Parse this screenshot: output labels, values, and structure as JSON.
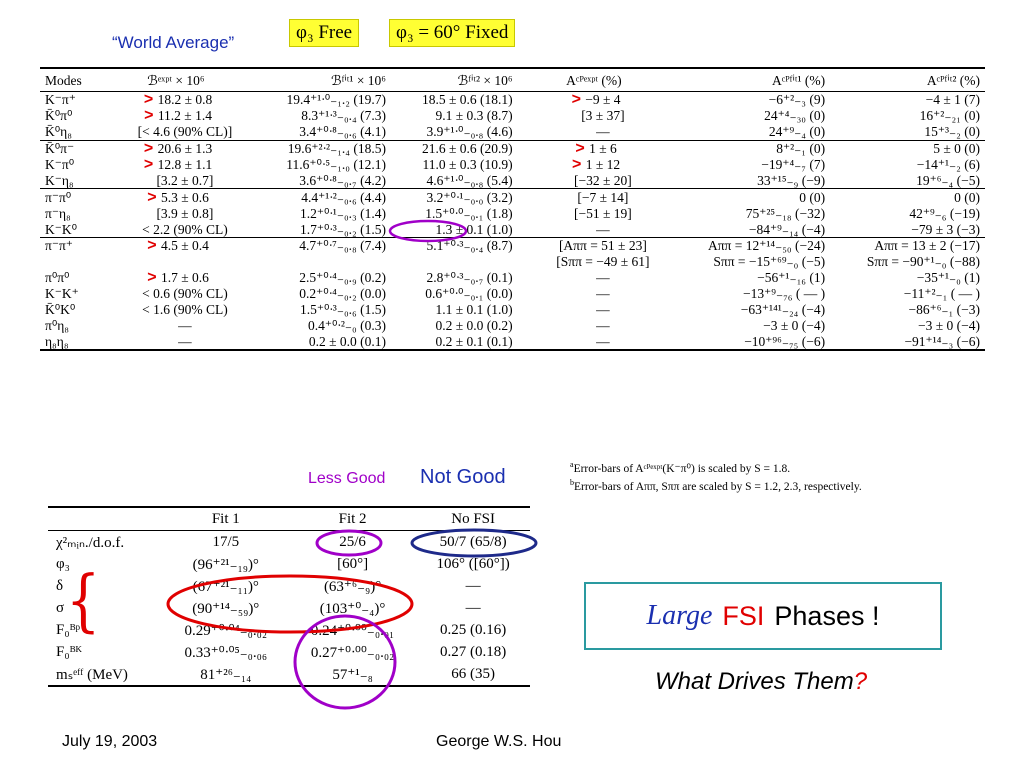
{
  "header": {
    "world_average": "“World Average”",
    "phi3_free": "φ₃ Free",
    "phi3_fixed": "φ₃ = 60° Fixed"
  },
  "table1": {
    "headers": [
      "Modes",
      "ℬᵉˣᵖᵗ × 10⁶",
      "ℬᶠⁱᵗ¹ × 10⁶",
      "ℬᶠⁱᵗ² × 10⁶",
      "Aᶜᴾᵉˣᵖᵗ (%)",
      "Aᶜᴾᶠⁱᵗ¹ (%)",
      "Aᶜᴾᶠⁱᵗ² (%)"
    ],
    "rows": [
      {
        "mode": "K⁻π⁺",
        "m1": ">",
        "expt": "18.2 ± 0.8",
        "fit1": "19.4⁺¹ᐧ⁰₋₁.₂ (19.7)",
        "fit2": "18.5 ± 0.6 (18.1)",
        "m2": ">",
        "aexp": "−9 ± 4",
        "af1": "−6⁺²₋₃ (9)",
        "af2": "−4 ± 1 (7)",
        "grp": true
      },
      {
        "mode": "K̄⁰π⁰",
        "m1": ">",
        "expt": "11.2 ± 1.4",
        "fit1": "8.3⁺¹ᐧ³₋₀.₄ (7.3)",
        "fit2": "9.1 ± 0.3 (8.7)",
        "m2": "",
        "aexp": "[3 ± 37]",
        "af1": "24⁺⁴₋₃₀ (0)",
        "af2": "16⁺²₋₂₁ (0)",
        "grp": false
      },
      {
        "mode": "K̄⁰η₈",
        "m1": "",
        "expt": "[< 4.6 (90% CL)]",
        "fit1": "3.4⁺⁰ᐧ⁸₋₀.₆ (4.1)",
        "fit2": "3.9⁺¹ᐧ⁰₋₀.₈ (4.6)",
        "m2": "",
        "aexp": "—",
        "af1": "24⁺⁹₋₄ (0)",
        "af2": "15⁺³₋₂ (0)",
        "grp": false
      },
      {
        "mode": "K̄⁰π⁻",
        "m1": ">",
        "expt": "20.6 ± 1.3",
        "fit1": "19.6⁺²ᐧ²₋₁.₄ (18.5)",
        "fit2": "21.6 ± 0.6 (20.9)",
        "m2": ">",
        "aexp": "1 ± 6",
        "af1": "8⁺²₋₁ (0)",
        "af2": "5 ± 0 (0)",
        "grp": true
      },
      {
        "mode": "K⁻π⁰",
        "m1": ">",
        "expt": "12.8 ± 1.1",
        "fit1": "11.6⁺⁰ᐧ⁵₋₁.₀ (12.1)",
        "fit2": "11.0 ± 0.3 (10.9)",
        "m2": ">",
        "aexp": "1 ± 12",
        "af1": "−19⁺⁴₋₇ (7)",
        "af2": "−14⁺¹₋₂ (6)",
        "grp": false
      },
      {
        "mode": "K⁻η₈",
        "m1": "",
        "expt": "[3.2 ± 0.7]",
        "fit1": "3.6⁺⁰ᐧ⁸₋₀.₇ (4.2)",
        "fit2": "4.6⁺¹ᐧ⁰₋₀.₈ (5.4)",
        "m2": "",
        "aexp": "[−32 ± 20]",
        "af1": "33⁺¹⁵₋₉ (−9)",
        "af2": "19⁺⁶₋₄ (−5)",
        "grp": false
      },
      {
        "mode": "π⁻π⁰",
        "m1": ">",
        "expt": "5.3 ± 0.6",
        "fit1": "4.4⁺¹ᐧ²₋₀.₆ (4.4)",
        "fit2": "3.2⁺⁰ᐧ¹₋₀.₀ (3.2)",
        "m2": "",
        "aexp": "[−7 ± 14]",
        "af1": "0 (0)",
        "af2": "0 (0)",
        "grp": true
      },
      {
        "mode": "π⁻η₈",
        "m1": "",
        "expt": "[3.9 ± 0.8]",
        "fit1": "1.2⁺⁰ᐧ¹₋₀.₃ (1.4)",
        "fit2": "1.5⁺⁰ᐧ⁰₋₀.₁ (1.8)",
        "m2": "",
        "aexp": "[−51 ± 19]",
        "af1": "75⁺²⁵₋₁₈ (−32)",
        "af2": "42⁺⁹₋₆ (−19)",
        "grp": false
      },
      {
        "mode": "K⁻K⁰",
        "m1": "",
        "expt": "< 2.2 (90% CL)",
        "fit1": "1.7⁺⁰ᐧ³₋₀.₂ (1.5)",
        "fit2": "1.3 ± 0.1 (1.0)",
        "m2": "",
        "aexp": "—",
        "af1": "−84⁺⁹₋₁₄ (−4)",
        "af2": "−79 ± 3 (−3)",
        "grp": false
      },
      {
        "mode": "π⁻π⁺",
        "m1": ">",
        "expt": "4.5 ± 0.4",
        "fit1": "4.7⁺⁰ᐧ⁷₋₀.₈ (7.4)",
        "fit2": "5.1⁺⁰ᐧ³₋₀.₄ (8.7)",
        "m2": "",
        "aexp": "[Aππ = 51 ± 23]",
        "af1": "Aππ = 12⁺¹⁴₋₅₀ (−24)",
        "af2": "Aππ = 13 ± 2 (−17)",
        "grp": true
      },
      {
        "mode": "",
        "m1": "",
        "expt": "",
        "fit1": "",
        "fit2": "",
        "m2": "",
        "aexp": "[Sππ = −49 ± 61]",
        "af1": "Sππ = −15⁺⁶⁹₋₀ (−5)",
        "af2": "Sππ = −90⁺¹₋₀ (−88)",
        "grp": false
      },
      {
        "mode": "π⁰π⁰",
        "m1": ">",
        "expt": "1.7 ± 0.6",
        "fit1": "2.5⁺⁰ᐧ⁴₋₀.₉ (0.2)",
        "fit2": "2.8⁺⁰ᐧ³₋₀.₇ (0.1)",
        "m2": "",
        "aexp": "—",
        "af1": "−56⁺¹₋₁₆ (1)",
        "af2": "−35⁺¹₋₀ (1)",
        "grp": false
      },
      {
        "mode": "K⁻K⁺",
        "m1": "",
        "expt": "< 0.6 (90% CL)",
        "fit1": "0.2⁺⁰ᐧ⁴₋₀.₂ (0.0)",
        "fit2": "0.6⁺⁰ᐧ⁰₋₀.₁ (0.0)",
        "m2": "",
        "aexp": "—",
        "af1": "−13⁺⁹₋₇₆ ( — )",
        "af2": "−11⁺²₋₁ ( — )",
        "grp": false
      },
      {
        "mode": "K̄⁰K⁰",
        "m1": "",
        "expt": "< 1.6 (90% CL)",
        "fit1": "1.5⁺⁰ᐧ³₋₀.₆ (1.5)",
        "fit2": "1.1 ± 0.1 (1.0)",
        "m2": "",
        "aexp": "—",
        "af1": "−63⁺¹⁴¹₋₂₄ (−4)",
        "af2": "−86⁺⁶₋₁ (−3)",
        "grp": false
      },
      {
        "mode": "π⁰η₈",
        "m1": "",
        "expt": "—",
        "fit1": "0.4⁺⁰ᐧ²₋₀ (0.3)",
        "fit2": "0.2 ± 0.0 (0.2)",
        "m2": "",
        "aexp": "—",
        "af1": "−3 ± 0 (−4)",
        "af2": "−3 ± 0 (−4)",
        "grp": false
      },
      {
        "mode": "η₈η₈",
        "m1": "",
        "expt": "—",
        "fit1": "0.2 ± 0.0 (0.1)",
        "fit2": "0.2 ± 0.1 (0.1)",
        "m2": "",
        "aexp": "—",
        "af1": "−10⁺⁹⁶₋₇₅ (−6)",
        "af2": "−91⁺¹⁴₋₃ (−6)",
        "grp": false
      }
    ]
  },
  "footnotes": {
    "a_mark": "a",
    "a_text": "Error-bars of Aᶜᴾᵉˣᵖᵗ(K⁻π⁰) is scaled by S = 1.8.",
    "b_mark": "b",
    "b_text": "Error-bars of Aππ, Sππ are scaled by S = 1.2, 2.3, respectively."
  },
  "labels": {
    "less_good": "Less Good",
    "not_good": "Not Good"
  },
  "table2": {
    "headers": [
      "",
      "Fit 1",
      "Fit 2",
      "No FSI"
    ],
    "rows": [
      {
        "q": "χ²ₘᵢₙ./d.o.f.",
        "fit1": "17/5",
        "fit2": "25/6",
        "nofsi": "50/7 (65/8)"
      },
      {
        "q": "φ₃",
        "fit1": "(96⁺²¹₋₁₉)°",
        "fit2": "[60°]",
        "nofsi": "106° ([60°])"
      },
      {
        "q": "δ",
        "fit1": "(67⁺²¹₋₁₁)°",
        "fit2": "(63⁺⁶₋₉)°",
        "nofsi": "—"
      },
      {
        "q": "σ",
        "fit1": "(90⁺¹⁴₋₅₉)°",
        "fit2": "(103⁺⁰₋₄)°",
        "nofsi": "—"
      },
      {
        "q": "F₀ᴮᵖ",
        "fit1": "0.29⁺⁰ᐧ⁰⁴₋₀.₀₂",
        "fit2": "0.24⁺⁰ᐧ⁰⁰₋₀.₀₁",
        "nofsi": "0.25 (0.16)"
      },
      {
        "q": "F₀ᴮᴷ",
        "fit1": "0.33⁺⁰ᐧ⁰⁵₋₀.₀₆",
        "fit2": "0.27⁺⁰ᐧ⁰⁰₋₀.₀₂",
        "nofsi": "0.27 (0.18)"
      },
      {
        "q": "mₛᵉᶠᶠ (MeV)",
        "fit1": "81⁺²⁶₋₁₄",
        "fit2": "57⁺¹₋₈",
        "nofsi": "66 (35)"
      }
    ]
  },
  "fsi_box": {
    "large": "Large",
    "fsi": "FSI",
    "phases": "Phases !"
  },
  "what_drives": {
    "text": "What Drives Them",
    "mark": "?"
  },
  "footer": {
    "date": "July 19, 2003",
    "author": "George W.S. Hou"
  },
  "colors": {
    "red": "#e00000",
    "blue": "#1a2fb0",
    "purple": "#a000c8",
    "navy": "#1e2a8a",
    "teal": "#2a9aa0",
    "yellow": "#ffff33"
  }
}
